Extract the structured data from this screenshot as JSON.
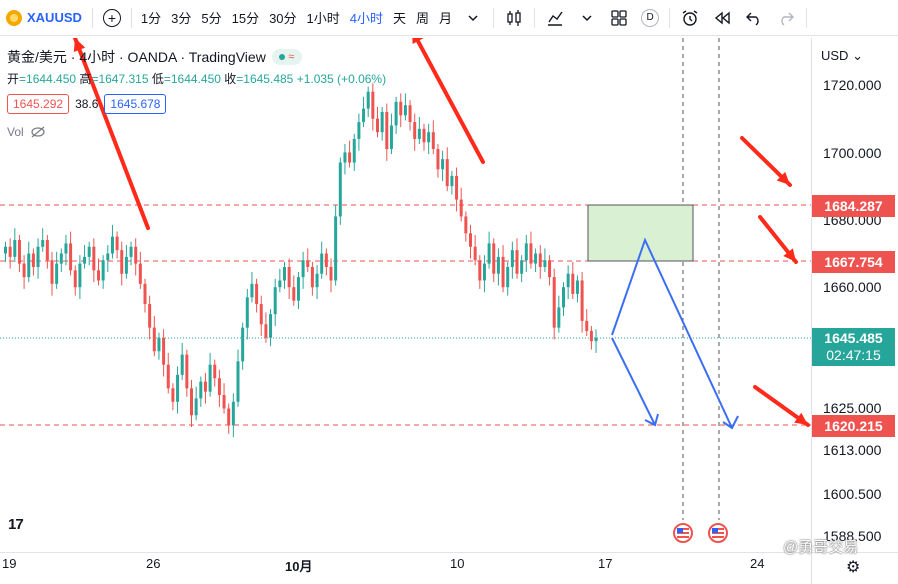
{
  "toolbar": {
    "symbol": "XAUUSD",
    "timeframes": [
      "1分",
      "3分",
      "5分",
      "15分",
      "30分",
      "1小时",
      "4小时",
      "天",
      "周",
      "月"
    ],
    "active_timeframe": "4小时",
    "d_badge": "D"
  },
  "legend": {
    "title": "黄金/美元 · 4小时 · OANDA · TradingView",
    "open_label": "开",
    "open": "=1644.450",
    "high_label": "高",
    "high": "=1647.315",
    "low_label": "低",
    "low": "=1644.450",
    "close_label": "收",
    "close": "=1645.485",
    "change": "+1.035 (+0.06%)",
    "bid": "1645.292",
    "spread": "38.6",
    "ask": "1645.678",
    "vol_label": "Vol"
  },
  "price_axis": {
    "currency": "USD",
    "ticks": [
      "1720.000",
      "1700.000",
      "1680.000",
      "1660.000",
      "1625.000",
      "1613.000",
      "1600.500",
      "1588.500"
    ],
    "tags": {
      "level1": "1684.287",
      "level2": "1667.754",
      "current_price": "1645.485",
      "countdown": "02:47:15",
      "level3": "1620.215"
    }
  },
  "time_axis": {
    "labels": [
      "19",
      "26",
      "10月",
      "10",
      "17",
      "24"
    ]
  },
  "watermark": "@勇哥交易",
  "colors": {
    "up": "#26a69a",
    "down": "#ef5350",
    "accent": "#2962ff",
    "box": "#d9f0d3",
    "annotation_arrow": "#ff2a1a",
    "projection": "#3b6ef5"
  }
}
